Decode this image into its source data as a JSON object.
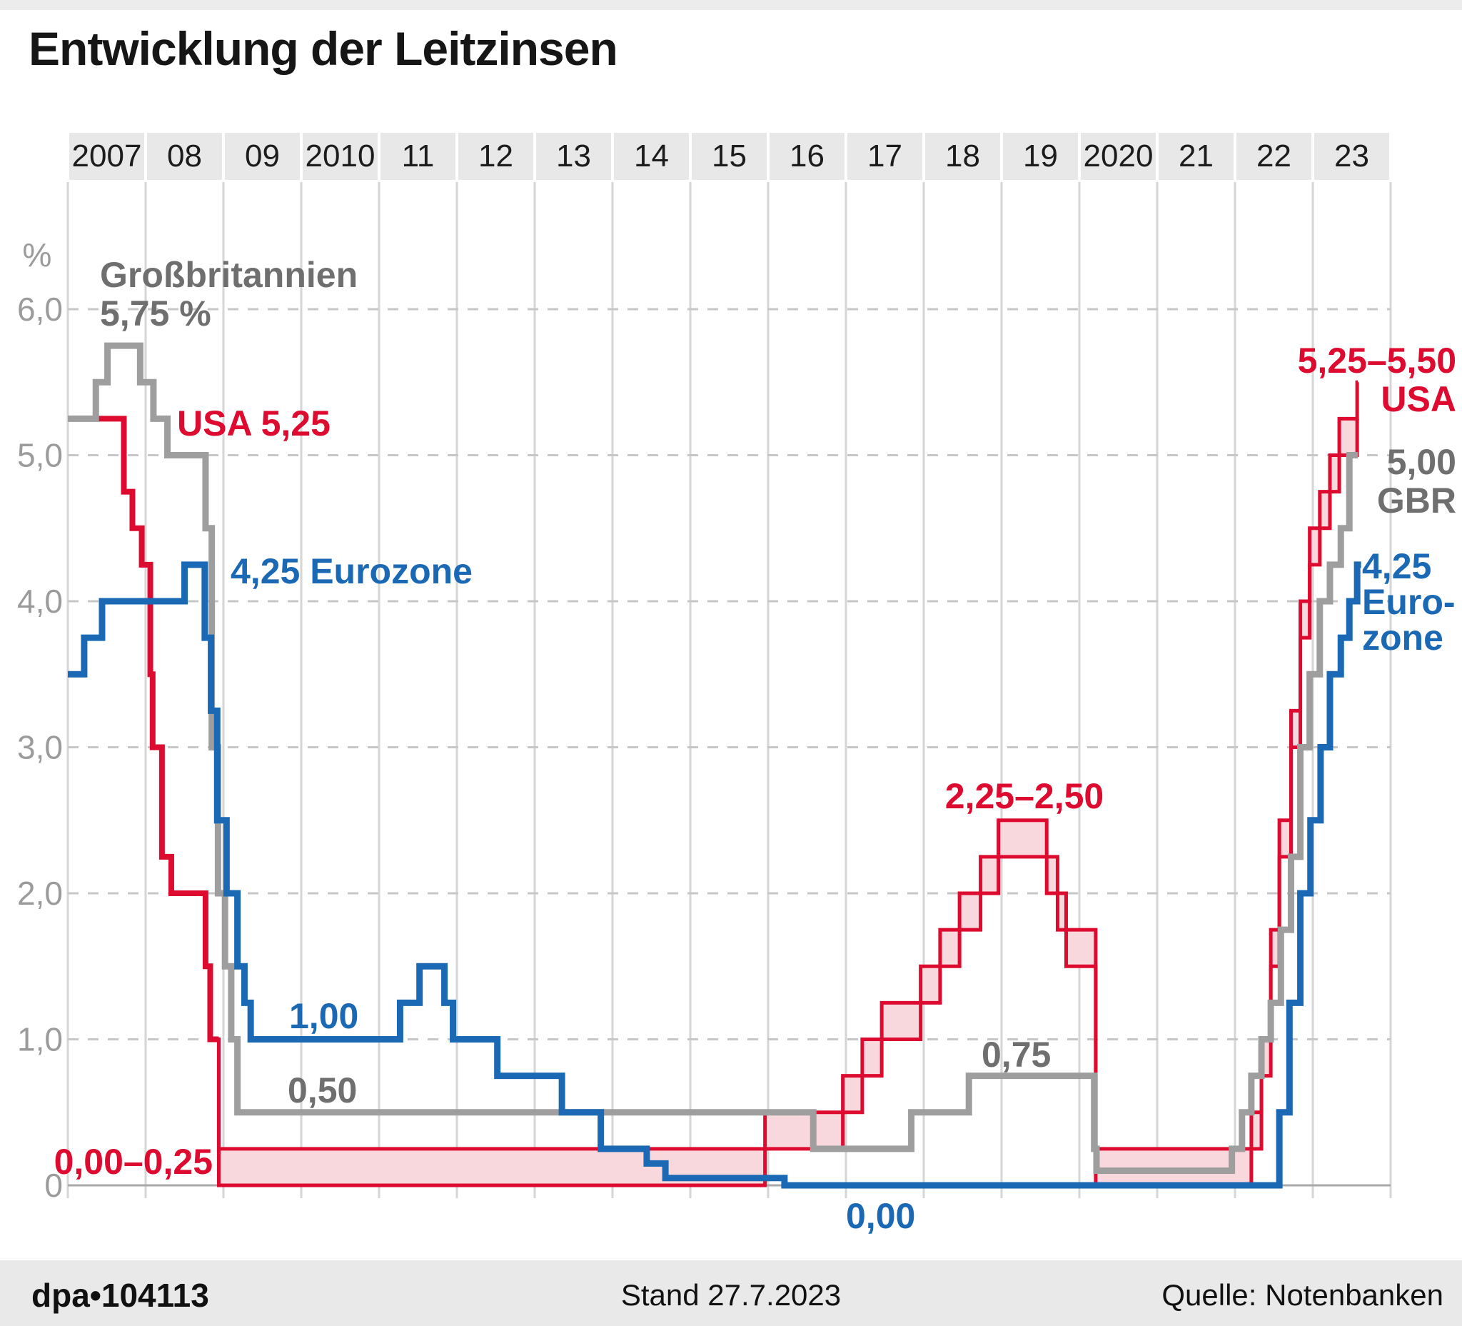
{
  "title": "Entwicklung der Leitzinsen",
  "palette": {
    "red": "#dd0b2f",
    "pink_fill": "#f8d8dd",
    "blue": "#1b69b4",
    "gray_line": "#9e9e9e",
    "gray_text": "#6f6f6f",
    "axis_text": "#9b9b9b",
    "year_text": "#1c1c1c",
    "grid_v": "#d6d6d6",
    "grid_h": "#c7c7c7",
    "zero_axis": "#a9a9a9",
    "year_band": "#e8e8e8"
  },
  "annotations": {
    "gb_start_line1": "Großbritannien",
    "gb_start_line2": "5,75 %",
    "usa_start": "USA 5,25",
    "ez_start": "4,25 Eurozone",
    "usa_peak_2018": "2,25–2,50",
    "ez_low_1": "1,00",
    "gb_low_1": "0,50",
    "gb_low_2": "0,75",
    "usa_zero_band": "0,00–0,25",
    "ez_zero": "0,00",
    "usa_end_line1": "5,25–5,50",
    "usa_end_line2": "USA",
    "gbr_end_line1": "5,00",
    "gbr_end_line2": "GBR",
    "ez_end_line1": "4,25",
    "ez_end_line2": "Euro-",
    "ez_end_line3": "zone"
  },
  "footer": {
    "id": "dpa•104113",
    "stand": "Stand 27.7.2023",
    "source": "Quelle: Notenbanken"
  },
  "chart_data": {
    "type": "line",
    "subtype": "step-after",
    "unit_label": "%",
    "x_range": [
      2007,
      2024
    ],
    "y_range": [
      0,
      6.3
    ],
    "grid": "horizontal-dashed, vertical-solid",
    "years": [
      "2007",
      "08",
      "09",
      "2010",
      "11",
      "12",
      "13",
      "14",
      "15",
      "16",
      "17",
      "18",
      "19",
      "2020",
      "21",
      "22",
      "23"
    ],
    "y_ticks": [
      {
        "label": "6,0",
        "v": 6
      },
      {
        "label": "5,0",
        "v": 5
      },
      {
        "label": "4,0",
        "v": 4
      },
      {
        "label": "3,0",
        "v": 3
      },
      {
        "label": "2,0",
        "v": 2
      },
      {
        "label": "1,0",
        "v": 1
      },
      {
        "label": "0",
        "v": 0
      }
    ],
    "series": [
      {
        "name": "USA",
        "style": "range-band",
        "end": 2023.58,
        "points_t_lo_hi": [
          [
            2007.0,
            5.25,
            5.25
          ],
          [
            2007.72,
            4.75,
            4.75
          ],
          [
            2007.83,
            4.5,
            4.5
          ],
          [
            2007.95,
            4.25,
            4.25
          ],
          [
            2008.06,
            3.5,
            3.5
          ],
          [
            2008.09,
            3.0,
            3.0
          ],
          [
            2008.21,
            2.25,
            2.25
          ],
          [
            2008.33,
            2.0,
            2.0
          ],
          [
            2008.77,
            1.5,
            1.5
          ],
          [
            2008.83,
            1.0,
            1.0
          ],
          [
            2008.94,
            0.0,
            0.25
          ],
          [
            2015.96,
            0.25,
            0.5
          ],
          [
            2016.96,
            0.5,
            0.75
          ],
          [
            2017.21,
            0.75,
            1.0
          ],
          [
            2017.46,
            1.0,
            1.25
          ],
          [
            2017.96,
            1.25,
            1.5
          ],
          [
            2018.21,
            1.5,
            1.75
          ],
          [
            2018.46,
            1.75,
            2.0
          ],
          [
            2018.73,
            2.0,
            2.25
          ],
          [
            2018.96,
            2.25,
            2.5
          ],
          [
            2019.58,
            2.0,
            2.25
          ],
          [
            2019.72,
            1.75,
            2.0
          ],
          [
            2019.83,
            1.5,
            1.75
          ],
          [
            2020.21,
            0.0,
            0.25
          ],
          [
            2022.21,
            0.25,
            0.5
          ],
          [
            2022.34,
            0.75,
            1.0
          ],
          [
            2022.46,
            1.5,
            1.75
          ],
          [
            2022.57,
            2.25,
            2.5
          ],
          [
            2022.72,
            3.0,
            3.25
          ],
          [
            2022.84,
            3.75,
            4.0
          ],
          [
            2022.96,
            4.25,
            4.5
          ],
          [
            2023.09,
            4.5,
            4.75
          ],
          [
            2023.22,
            4.75,
            5.0
          ],
          [
            2023.34,
            5.0,
            5.25
          ],
          [
            2023.57,
            5.25,
            5.5
          ]
        ]
      },
      {
        "name": "Großbritannien",
        "style": "line",
        "end": 2023.58,
        "points_t_v": [
          [
            2007.0,
            5.25
          ],
          [
            2007.36,
            5.5
          ],
          [
            2007.51,
            5.75
          ],
          [
            2007.93,
            5.5
          ],
          [
            2008.1,
            5.25
          ],
          [
            2008.28,
            5.0
          ],
          [
            2008.77,
            4.5
          ],
          [
            2008.85,
            3.0
          ],
          [
            2008.93,
            2.0
          ],
          [
            2009.02,
            1.5
          ],
          [
            2009.1,
            1.0
          ],
          [
            2009.18,
            0.5
          ],
          [
            2016.58,
            0.25
          ],
          [
            2017.84,
            0.5
          ],
          [
            2018.58,
            0.75
          ],
          [
            2020.19,
            0.25
          ],
          [
            2020.22,
            0.1
          ],
          [
            2021.96,
            0.25
          ],
          [
            2022.09,
            0.5
          ],
          [
            2022.21,
            0.75
          ],
          [
            2022.34,
            1.0
          ],
          [
            2022.46,
            1.25
          ],
          [
            2022.59,
            1.75
          ],
          [
            2022.72,
            2.25
          ],
          [
            2022.84,
            3.0
          ],
          [
            2022.96,
            3.5
          ],
          [
            2023.09,
            4.0
          ],
          [
            2023.22,
            4.25
          ],
          [
            2023.36,
            4.5
          ],
          [
            2023.47,
            5.0
          ]
        ]
      },
      {
        "name": "Eurozone",
        "style": "line",
        "end": 2023.62,
        "points_t_v": [
          [
            2007.0,
            3.5
          ],
          [
            2007.21,
            3.75
          ],
          [
            2007.44,
            4.0
          ],
          [
            2008.5,
            4.25
          ],
          [
            2008.76,
            3.75
          ],
          [
            2008.84,
            3.25
          ],
          [
            2008.92,
            2.5
          ],
          [
            2009.04,
            2.0
          ],
          [
            2009.18,
            1.5
          ],
          [
            2009.27,
            1.25
          ],
          [
            2009.35,
            1.0
          ],
          [
            2011.27,
            1.25
          ],
          [
            2011.52,
            1.5
          ],
          [
            2011.84,
            1.25
          ],
          [
            2011.95,
            1.0
          ],
          [
            2012.52,
            0.75
          ],
          [
            2013.35,
            0.5
          ],
          [
            2013.85,
            0.25
          ],
          [
            2014.44,
            0.15
          ],
          [
            2014.68,
            0.05
          ],
          [
            2016.21,
            0.0
          ],
          [
            2022.57,
            0.5
          ],
          [
            2022.7,
            1.25
          ],
          [
            2022.84,
            2.0
          ],
          [
            2022.97,
            2.5
          ],
          [
            2023.1,
            3.0
          ],
          [
            2023.22,
            3.5
          ],
          [
            2023.36,
            3.75
          ],
          [
            2023.47,
            4.0
          ],
          [
            2023.57,
            4.25
          ]
        ]
      }
    ]
  }
}
